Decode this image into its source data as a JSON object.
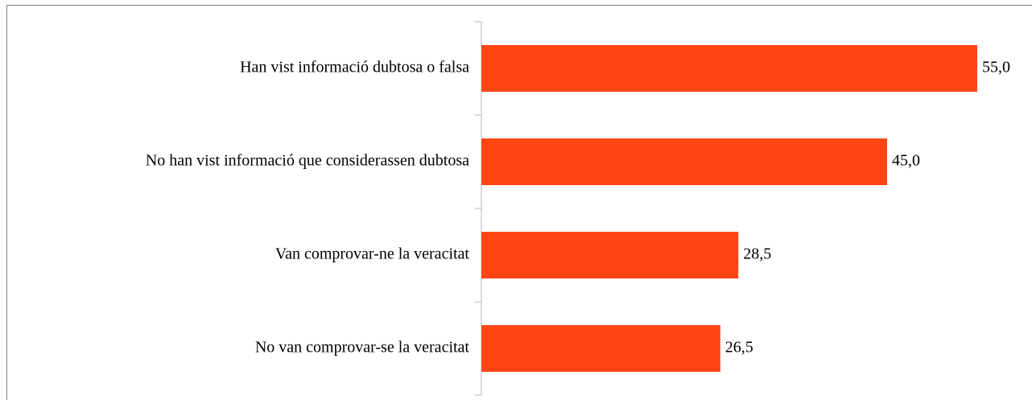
{
  "chart_data": {
    "type": "barh",
    "categories": [
      "Han vist informació dubtosa o falsa",
      "No han vist informació que considerassen dubtosa",
      "Van comprovar-ne la veracitat",
      "No van comprovar-se la veracitat"
    ],
    "values": [
      55.0,
      45.0,
      28.5,
      26.5
    ],
    "value_labels": [
      "55,0",
      "45,0",
      "28,5",
      "26,5"
    ],
    "color": "#ff4514",
    "xlim": [
      0,
      60
    ]
  }
}
